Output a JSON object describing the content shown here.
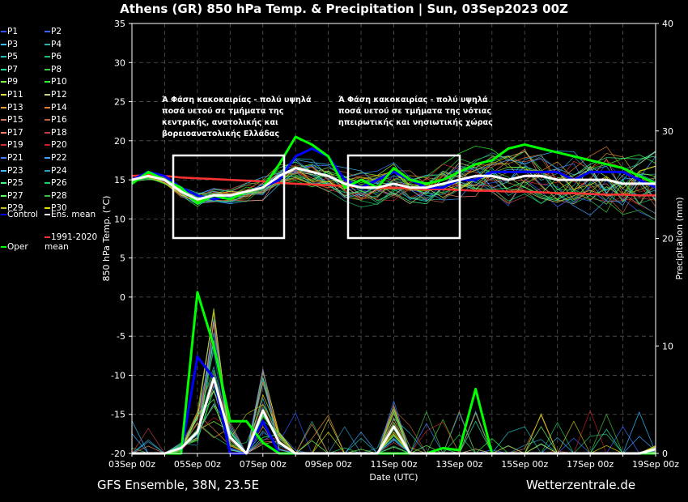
{
  "title": "Athens  (GR)  850 hPa Temp. & Precipitation | Sun, 03Sep2023 00Z",
  "footer": {
    "left": "GFS Ensemble, 38N, 23.5E",
    "right": "Wetterzentrale.de"
  },
  "annotations": [
    "Ά Φάση κακοκαιρίας - πολύ υψηλά\nποσά υετού σε τμήματα της\nκεντρικής, ανατολικής και\nβορειοανατολικής Ελλάδας",
    "Ά Φάση κακοκαιρίας - πολύ υψηλά\nποσά υετού σε τμήματα της νότιας\nηπειρωτικής και νησιωτικής χώρας"
  ],
  "colors": {
    "control": "#0000ff",
    "ens_mean": "#ffffff",
    "oper": "#00ff00",
    "clim": "#ff3333"
  },
  "chart_data": {
    "type": "line",
    "xlabel": "Date (UTC)",
    "ylabel": "850 hPa Temp. (°C)",
    "ylabel_right": "Precipitation (mm)",
    "ylim": [
      -20,
      35
    ],
    "ylim_right": [
      0,
      40
    ],
    "yticks": [
      "35",
      "30",
      "25",
      "20",
      "15",
      "10",
      "5",
      "0",
      "-5",
      "-10",
      "-15",
      "-20"
    ],
    "yticks_right": [
      "40",
      "30",
      "20",
      "10",
      "0"
    ],
    "xticks": [
      "03Sep 00z",
      "05Sep 00z",
      "07Sep 00z",
      "09Sep 00z",
      "11Sep 00z",
      "13Sep 00z",
      "15Sep 00z",
      "17Sep 00z",
      "19Sep 00z"
    ],
    "legend": [
      "P1",
      "P2",
      "P3",
      "P4",
      "P5",
      "P6",
      "P7",
      "P8",
      "P9",
      "P10",
      "P11",
      "P12",
      "P13",
      "P14",
      "P15",
      "P16",
      "P17",
      "P18",
      "P19",
      "P20",
      "P21",
      "P22",
      "P23",
      "P24",
      "P25",
      "P26",
      "P27",
      "P28",
      "P29",
      "P30",
      "Control",
      "Ens. mean",
      "1991-2020\nmean",
      "Oper"
    ],
    "days": [
      3,
      3.5,
      4,
      4.5,
      5,
      5.5,
      6,
      6.5,
      7,
      7.5,
      8,
      8.5,
      9,
      9.5,
      10,
      10.5,
      11,
      11.5,
      12,
      12.5,
      13,
      13.5,
      14,
      14.5,
      15,
      15.5,
      16,
      16.5,
      17,
      17.5,
      18,
      18.5,
      19
    ],
    "series": [
      {
        "name": "Control",
        "temp": [
          15,
          16,
          15.5,
          14,
          13,
          12.5,
          13,
          13.5,
          14,
          15,
          18,
          19,
          18,
          15,
          14,
          15,
          16,
          15,
          14,
          14,
          15,
          15,
          16,
          16,
          16,
          16,
          16,
          15,
          16,
          16,
          16,
          15,
          14
        ],
        "precip": [
          0,
          0,
          0,
          0,
          9,
          7,
          0,
          0,
          3,
          0,
          0,
          0,
          0,
          0,
          0,
          0,
          0,
          0,
          0,
          0,
          0,
          0,
          0,
          0,
          0,
          0,
          0,
          0,
          0,
          0,
          0,
          0,
          0
        ]
      },
      {
        "name": "Ens. mean",
        "temp": [
          15,
          15.5,
          15,
          13.5,
          12.5,
          13,
          13,
          13.5,
          14,
          15.5,
          16.5,
          16,
          15.5,
          14.5,
          14,
          14,
          14.5,
          14,
          14,
          14.5,
          15,
          15.5,
          15.5,
          15,
          15.5,
          15.5,
          15,
          15,
          15,
          15,
          14.5,
          14.5,
          14.5
        ],
        "precip": [
          0,
          0,
          0,
          0.5,
          2,
          7,
          1.5,
          0,
          4,
          1,
          0,
          0,
          0,
          0,
          0,
          0,
          2.5,
          0,
          0,
          0,
          0,
          0,
          0,
          0,
          0,
          0,
          0,
          0,
          0,
          0,
          0,
          0,
          0.4
        ]
      },
      {
        "name": "1991-2020\nmean",
        "temp": [
          15.5,
          15.6,
          15.5,
          15.3,
          15.2,
          15.1,
          15,
          14.9,
          14.8,
          14.6,
          14.5,
          14.4,
          14.3,
          14.2,
          14.1,
          14,
          14,
          13.9,
          13.8,
          13.8,
          13.7,
          13.6,
          13.6,
          13.5,
          13.5,
          13.4,
          13.3,
          13.3,
          13.2,
          13.1,
          13.1,
          13,
          13
        ]
      },
      {
        "name": "Oper",
        "temp": [
          14.5,
          16,
          15,
          14,
          12,
          13,
          12.5,
          13.5,
          14,
          17,
          20.5,
          19.5,
          18,
          14,
          15,
          14,
          16.5,
          15,
          14.5,
          15,
          16,
          17,
          17.5,
          19,
          19.5,
          19,
          18.5,
          18,
          17.5,
          17,
          16.5,
          15.5,
          14.5
        ],
        "precip": [
          0,
          0,
          0,
          0,
          15,
          10,
          3,
          3,
          1,
          0,
          0,
          0,
          0,
          0,
          0,
          0,
          0,
          0,
          0,
          0.5,
          0.3,
          6,
          0,
          0,
          0,
          0,
          0,
          0,
          0,
          0,
          0,
          0,
          0
        ]
      }
    ]
  }
}
